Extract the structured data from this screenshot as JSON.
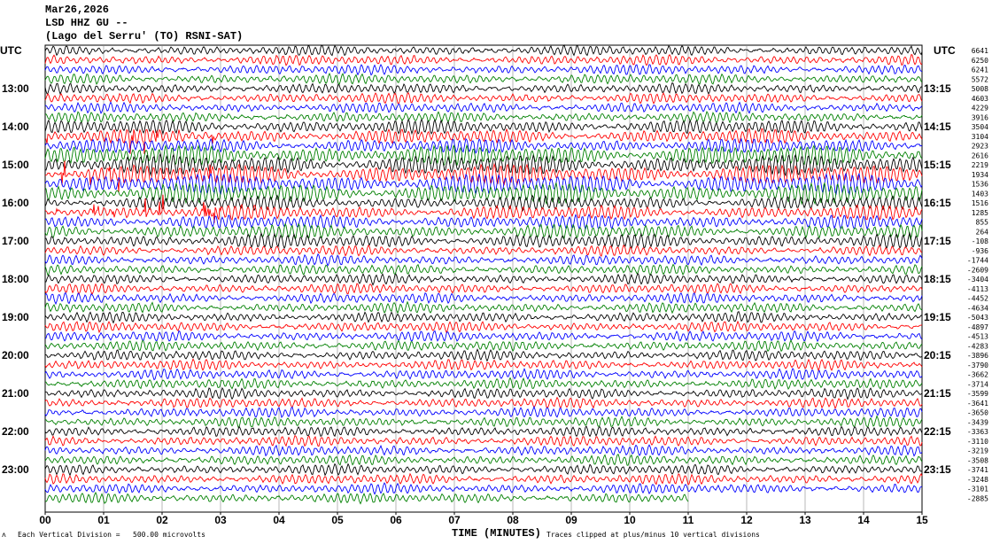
{
  "header": {
    "date": "Mar26,2026",
    "station": "LSD HHZ GU --",
    "location": "(Lago del Serru' (TO) RSNI-SAT)"
  },
  "left_axis_label": "UTC",
  "right_axis_label": "UTC",
  "footer": {
    "scale_note": "Each Vertical Division =   500.00 microvolts",
    "xlabel": "TIME (MINUTES)",
    "clip_note": "Traces clipped at plus/minus 10 vertical divisions"
  },
  "chart_data": {
    "type": "line",
    "subtype": "helicorder",
    "xlabel": "TIME (MINUTES)",
    "xlim": [
      0,
      15
    ],
    "x_ticks": [
      "00",
      "01",
      "02",
      "03",
      "04",
      "05",
      "06",
      "07",
      "08",
      "09",
      "10",
      "11",
      "12",
      "13",
      "14",
      "15"
    ],
    "left_hour_labels": [
      "13:00",
      "14:00",
      "15:00",
      "16:00",
      "17:00",
      "18:00",
      "19:00",
      "20:00",
      "21:00",
      "22:00",
      "23:00"
    ],
    "right_hour_labels": [
      "13:15",
      "14:15",
      "15:15",
      "16:15",
      "17:15",
      "18:15",
      "19:15",
      "20:15",
      "21:15",
      "22:15",
      "23:15"
    ],
    "trace_colors": [
      "#000000",
      "#ff0000",
      "#0000ff",
      "#008000"
    ],
    "minutes_per_line": 15,
    "last_line_end_minute": 11,
    "grid": true,
    "line_offsets": [
      6641,
      6250,
      6241,
      5572,
      5008,
      4603,
      4229,
      3916,
      3504,
      3104,
      2923,
      2616,
      2219,
      1934,
      1536,
      1403,
      1516,
      1285,
      855,
      264,
      -108,
      -936,
      -1744,
      -2609,
      -3404,
      -4113,
      -4452,
      -4634,
      -5043,
      -4897,
      -4513,
      -4283,
      -3896,
      -3790,
      -3662,
      -3714,
      -3599,
      -3641,
      -3650,
      -3439,
      -3363,
      -3110,
      -3219,
      -3508,
      -3741,
      -3248,
      -3101,
      -2885
    ]
  }
}
